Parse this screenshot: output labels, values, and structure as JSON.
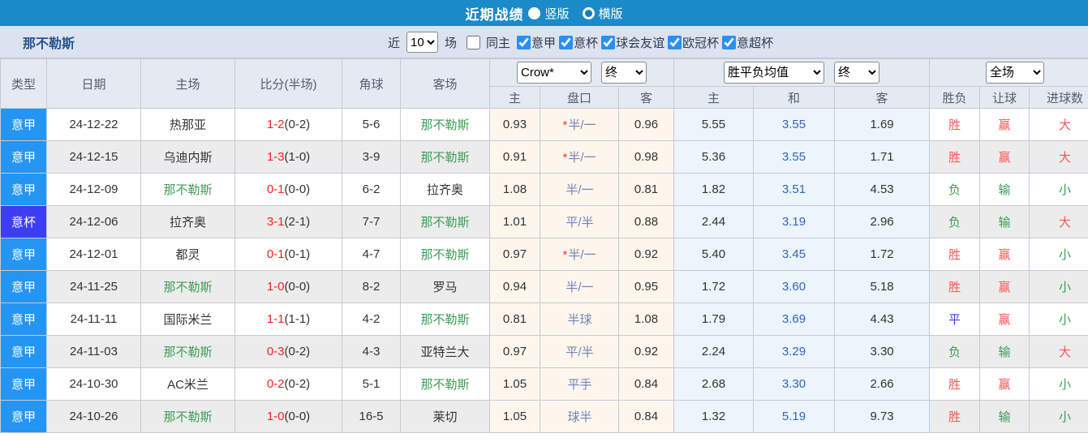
{
  "title_bar": {
    "title": "近期战绩",
    "options": [
      {
        "label": "竖版",
        "selected": false
      },
      {
        "label": "横版",
        "selected": true
      }
    ]
  },
  "filter_bar": {
    "team_name": "那不勒斯",
    "recent_label": "近",
    "recent_count": "10",
    "matches_label": "场",
    "same_home": {
      "label": "同主",
      "checked": false
    },
    "competitions": [
      {
        "label": "意甲",
        "checked": true
      },
      {
        "label": "意杯",
        "checked": true
      },
      {
        "label": "球会友谊",
        "checked": true
      },
      {
        "label": "欧冠杯",
        "checked": true
      },
      {
        "label": "意超杯",
        "checked": true
      }
    ]
  },
  "table": {
    "header": {
      "type": "类型",
      "date": "日期",
      "home": "主场",
      "score": "比分(半场)",
      "corners": "角球",
      "away": "客场"
    },
    "odds_group": {
      "bookmaker": "Crow*",
      "period": "终",
      "sub": [
        "主",
        "盘口",
        "客"
      ]
    },
    "avg_group": {
      "name": "胜平负均值",
      "period": "终",
      "sub": [
        "主",
        "和",
        "客"
      ]
    },
    "result_group": {
      "scope": "全场",
      "sub": [
        "胜负",
        "让球",
        "进球数"
      ]
    },
    "rows": [
      {
        "type": "意甲",
        "date": "24-12-22",
        "home": "热那亚",
        "score": "1-2",
        "half": "(0-2)",
        "corners": "5-6",
        "away": "那不勒斯",
        "odds_home": "0.93",
        "handicap_star": true,
        "handicap": "半/一",
        "odds_away": "0.96",
        "avg_home": "5.55",
        "avg_draw": "3.55",
        "avg_away": "1.69",
        "result": "胜",
        "handicap_result": "赢",
        "goals": "大"
      },
      {
        "type": "意甲",
        "date": "24-12-15",
        "home": "乌迪内斯",
        "score": "1-3",
        "half": "(1-0)",
        "corners": "3-9",
        "away": "那不勒斯",
        "odds_home": "0.91",
        "handicap_star": true,
        "handicap": "半/一",
        "odds_away": "0.98",
        "avg_home": "5.36",
        "avg_draw": "3.55",
        "avg_away": "1.71",
        "result": "胜",
        "handicap_result": "赢",
        "goals": "大"
      },
      {
        "type": "意甲",
        "date": "24-12-09",
        "home": "那不勒斯",
        "score": "0-1",
        "half": "(0-0)",
        "corners": "6-2",
        "away": "拉齐奥",
        "odds_home": "1.08",
        "handicap_star": false,
        "handicap": "半/一",
        "odds_away": "0.81",
        "avg_home": "1.82",
        "avg_draw": "3.51",
        "avg_away": "4.53",
        "result": "负",
        "handicap_result": "输",
        "goals": "小"
      },
      {
        "type": "意杯",
        "date": "24-12-06",
        "home": "拉齐奥",
        "score": "3-1",
        "half": "(2-1)",
        "corners": "7-7",
        "away": "那不勒斯",
        "odds_home": "1.01",
        "handicap_star": false,
        "handicap": "平/半",
        "odds_away": "0.88",
        "avg_home": "2.44",
        "avg_draw": "3.19",
        "avg_away": "2.96",
        "result": "负",
        "handicap_result": "输",
        "goals": "大"
      },
      {
        "type": "意甲",
        "date": "24-12-01",
        "home": "都灵",
        "score": "0-1",
        "half": "(0-1)",
        "corners": "4-7",
        "away": "那不勒斯",
        "odds_home": "0.97",
        "handicap_star": true,
        "handicap": "半/一",
        "odds_away": "0.92",
        "avg_home": "5.40",
        "avg_draw": "3.45",
        "avg_away": "1.72",
        "result": "胜",
        "handicap_result": "赢",
        "goals": "小"
      },
      {
        "type": "意甲",
        "date": "24-11-25",
        "home": "那不勒斯",
        "score": "1-0",
        "half": "(0-0)",
        "corners": "8-2",
        "away": "罗马",
        "odds_home": "0.94",
        "handicap_star": false,
        "handicap": "半/一",
        "odds_away": "0.95",
        "avg_home": "1.72",
        "avg_draw": "3.60",
        "avg_away": "5.18",
        "result": "胜",
        "handicap_result": "赢",
        "goals": "小"
      },
      {
        "type": "意甲",
        "date": "24-11-11",
        "home": "国际米兰",
        "score": "1-1",
        "half": "(1-1)",
        "corners": "4-2",
        "away": "那不勒斯",
        "odds_home": "0.81",
        "handicap_star": false,
        "handicap": "半球",
        "odds_away": "1.08",
        "avg_home": "1.79",
        "avg_draw": "3.69",
        "avg_away": "4.43",
        "result": "平",
        "handicap_result": "赢",
        "goals": "小"
      },
      {
        "type": "意甲",
        "date": "24-11-03",
        "home": "那不勒斯",
        "score": "0-3",
        "half": "(0-2)",
        "corners": "4-3",
        "away": "亚特兰大",
        "odds_home": "0.97",
        "handicap_star": false,
        "handicap": "平/半",
        "odds_away": "0.92",
        "avg_home": "2.24",
        "avg_draw": "3.29",
        "avg_away": "3.30",
        "result": "负",
        "handicap_result": "输",
        "goals": "大"
      },
      {
        "type": "意甲",
        "date": "24-10-30",
        "home": "AC米兰",
        "score": "0-2",
        "half": "(0-2)",
        "corners": "5-1",
        "away": "那不勒斯",
        "odds_home": "1.05",
        "handicap_star": false,
        "handicap": "平手",
        "odds_away": "0.84",
        "avg_home": "2.68",
        "avg_draw": "3.30",
        "avg_away": "2.66",
        "result": "胜",
        "handicap_result": "赢",
        "goals": "小"
      },
      {
        "type": "意甲",
        "date": "24-10-26",
        "home": "那不勒斯",
        "score": "1-0",
        "half": "(0-0)",
        "corners": "16-5",
        "away": "莱切",
        "odds_home": "1.05",
        "handicap_star": false,
        "handicap": "球半",
        "odds_away": "0.84",
        "avg_home": "1.32",
        "avg_draw": "5.19",
        "avg_away": "9.73",
        "result": "胜",
        "handicap_result": "输",
        "goals": "小"
      }
    ]
  },
  "colors": {
    "bar_blue": "#1b8ac9",
    "badge_seriea": "#2495f3",
    "badge_cup": "#3d3df2",
    "team_green": "#3d9c55",
    "score_red": "#ff1f1f",
    "win_red": "#fa5555",
    "loss_green": "#3d9c55",
    "draw_blue": "#3b3bf0",
    "handicap_text": "#7384bb",
    "avg_draw": "#3566c0",
    "checkbox_blue": "#2b8ff2"
  }
}
